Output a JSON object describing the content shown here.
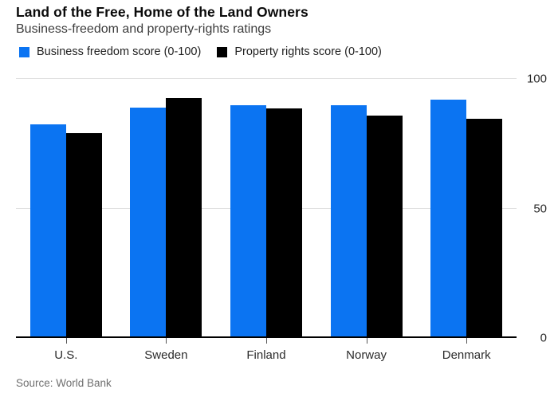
{
  "chart": {
    "title": "Land of the Free, Home of the Land Owners",
    "subtitle": "Business-freedom and property-rights ratings",
    "source": "Source: World Bank"
  },
  "chart_data": {
    "type": "bar",
    "title": "Land of the Free, Home of the Land Owners",
    "subtitle": "Business-freedom and property-rights ratings",
    "categories": [
      "U.S.",
      "Sweden",
      "Finland",
      "Norway",
      "Denmark"
    ],
    "series": [
      {
        "name": "Business freedom score (0-100)",
        "color": "#0b74f2",
        "values": [
          82.5,
          89,
          90,
          90,
          92
        ]
      },
      {
        "name": "Property rights score (0-100)",
        "color": "#000000",
        "values": [
          79,
          92.5,
          88.5,
          86,
          84.5
        ]
      }
    ],
    "ylabel": "",
    "xlabel": "",
    "ylim": [
      0,
      100
    ],
    "yticks": [
      0,
      50,
      100
    ],
    "ytick_side": "right",
    "grid": "horizontal",
    "gridline_color": "#e0e0e0",
    "axis_color": "#000000",
    "legend_position": "top-left",
    "source": "Source: World Bank"
  }
}
